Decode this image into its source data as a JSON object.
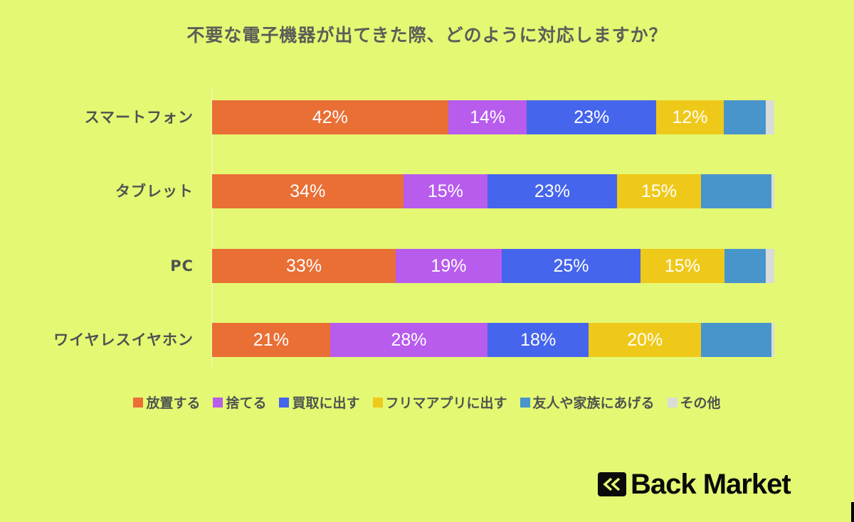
{
  "title": "不要な電子機器が出てきた際、どのように対応しますか？",
  "logo": {
    "text": "Back Market",
    "icon": "double-chevron-left-icon"
  },
  "legend": [
    {
      "label": "放置する",
      "color": "#e96f35"
    },
    {
      "label": "捨てる",
      "color": "#b75ced"
    },
    {
      "label": "買取に出す",
      "color": "#4565ec"
    },
    {
      "label": "フリマアプリに出す",
      "color": "#efc91a"
    },
    {
      "label": "友人や家族にあげる",
      "color": "#4895cb"
    },
    {
      "label": "その他",
      "color": "#d9dcd6"
    }
  ],
  "rows": [
    {
      "label": "スマートフォン",
      "values": [
        42,
        14,
        23,
        12,
        7.5,
        1.5
      ],
      "labels": [
        "42%",
        "14%",
        "23%",
        "12%",
        "",
        ""
      ]
    },
    {
      "label": "タブレット",
      "values": [
        34,
        15,
        23,
        15,
        12.5,
        0.5
      ],
      "labels": [
        "34%",
        "15%",
        "23%",
        "15%",
        "",
        ""
      ]
    },
    {
      "label": "PC",
      "values": [
        33,
        19,
        25,
        15,
        7.5,
        1.5
      ],
      "labels": [
        "33%",
        "19%",
        "25%",
        "15%",
        "",
        ""
      ]
    },
    {
      "label": "ワイヤレスイヤホン",
      "values": [
        21,
        28,
        18,
        20,
        12.5,
        0.5
      ],
      "labels": [
        "21%",
        "28%",
        "18%",
        "20%",
        "",
        ""
      ]
    }
  ],
  "chart_data": {
    "type": "bar",
    "orientation": "horizontal",
    "stacked": true,
    "normalized_percent": true,
    "title": "不要な電子機器が出てきた際、どのように対応しますか？",
    "categories": [
      "スマートフォン",
      "タブレット",
      "PC",
      "ワイヤレスイヤホン"
    ],
    "series": [
      {
        "name": "放置する",
        "color": "#e96f35",
        "values": [
          42,
          34,
          33,
          21
        ]
      },
      {
        "name": "捨てる",
        "color": "#b75ced",
        "values": [
          14,
          15,
          19,
          28
        ]
      },
      {
        "name": "買取に出す",
        "color": "#4565ec",
        "values": [
          23,
          23,
          25,
          18
        ]
      },
      {
        "name": "フリマアプリに出す",
        "color": "#efc91a",
        "values": [
          12,
          15,
          15,
          20
        ]
      },
      {
        "name": "友人や家族にあげる",
        "color": "#4895cb",
        "values": [
          7.5,
          12.5,
          7.5,
          12.5
        ]
      },
      {
        "name": "その他",
        "color": "#d9dcd6",
        "values": [
          1.5,
          0.5,
          1.5,
          0.5
        ]
      }
    ],
    "data_labels_shown": "first four series only (percent)",
    "xlabel": "",
    "ylabel": "",
    "xlim": [
      0,
      100
    ],
    "grid": false,
    "legend_position": "bottom"
  }
}
